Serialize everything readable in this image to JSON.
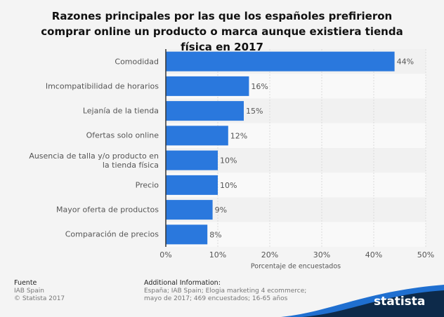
{
  "chart_data": {
    "type": "bar",
    "orientation": "horizontal",
    "title": "Razones principales por las que los españoles prefirieron comprar online un producto o marca aunque existiera tienda física en 2017",
    "categories": [
      "Comodidad",
      "Imcompatibilidad de horarios",
      "Lejanía de la tienda",
      "Ofertas solo online",
      "Ausencia de talla y/o producto en la tienda física",
      "Precio",
      "Mayor oferta de productos",
      "Comparación de precios"
    ],
    "values": [
      44,
      16,
      15,
      12,
      10,
      10,
      9,
      8
    ],
    "value_labels": [
      "44%",
      "16%",
      "15%",
      "12%",
      "10%",
      "10%",
      "9%",
      "8%"
    ],
    "color": "#2a78dd",
    "x_label": "Porcentaje de encuestados",
    "xlim": [
      0,
      50
    ],
    "xticks": [
      {
        "value": 0,
        "label": "0%"
      },
      {
        "value": 10,
        "label": "10%"
      },
      {
        "value": 20,
        "label": "20%"
      },
      {
        "value": 30,
        "label": "30%"
      },
      {
        "value": 40,
        "label": "40%"
      },
      {
        "value": 50,
        "label": "50%"
      }
    ],
    "grid": true
  },
  "footer": {
    "source_heading": "Fuente",
    "source": "IAB Spain",
    "copyright": "© Statista 2017",
    "info_heading": "Additional Information:",
    "info": "España; IAB Spain; Elogia marketing 4 ecommerce; mayo de 2017; 469 encuestados; 16-65 años",
    "logo": "statista"
  }
}
